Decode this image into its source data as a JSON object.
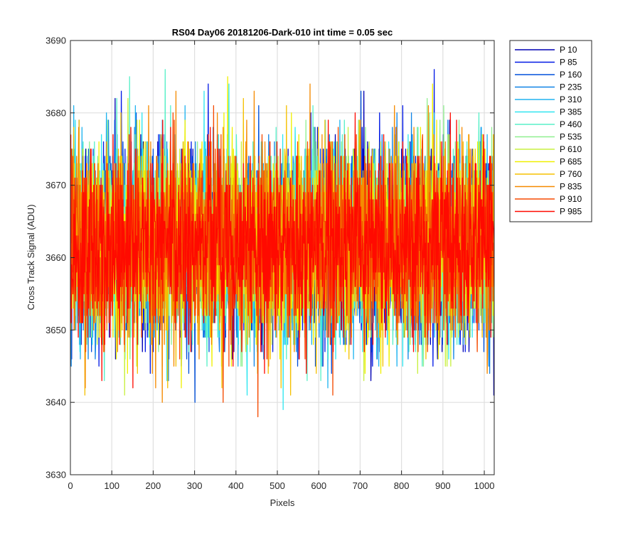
{
  "chart_data": {
    "type": "line",
    "title": "RS04 Day06 20181206-Dark-010 int time = 0.05 sec",
    "xlabel": "Pixels",
    "ylabel": "Cross Track Signal (ADU)",
    "xlim": [
      0,
      1024
    ],
    "ylim": [
      3630,
      3690
    ],
    "xticks": [
      0,
      100,
      200,
      300,
      400,
      500,
      600,
      700,
      800,
      900,
      1000
    ],
    "yticks": [
      3630,
      3640,
      3650,
      3660,
      3670,
      3680,
      3690
    ],
    "grid": true,
    "legend_position": "outside-top-right",
    "noise_model": {
      "n_points": 1024,
      "mean": 3662,
      "std": 6.5,
      "min": 3632,
      "max": 3690
    },
    "series": [
      {
        "name": "P 10",
        "color": "#0000b4"
      },
      {
        "name": "P 85",
        "color": "#0018e6"
      },
      {
        "name": "P 160",
        "color": "#0050dc"
      },
      {
        "name": "P 235",
        "color": "#1084e6"
      },
      {
        "name": "P 310",
        "color": "#20b4f0"
      },
      {
        "name": "P 385",
        "color": "#30e6f0"
      },
      {
        "name": "P 460",
        "color": "#58f0c8"
      },
      {
        "name": "P 535",
        "color": "#90f090"
      },
      {
        "name": "P 610",
        "color": "#c8f040"
      },
      {
        "name": "P 685",
        "color": "#f0f000"
      },
      {
        "name": "P 760",
        "color": "#f5c000"
      },
      {
        "name": "P 835",
        "color": "#f58a00"
      },
      {
        "name": "P 910",
        "color": "#f54a00"
      },
      {
        "name": "P 985",
        "color": "#ff0a00"
      }
    ]
  }
}
